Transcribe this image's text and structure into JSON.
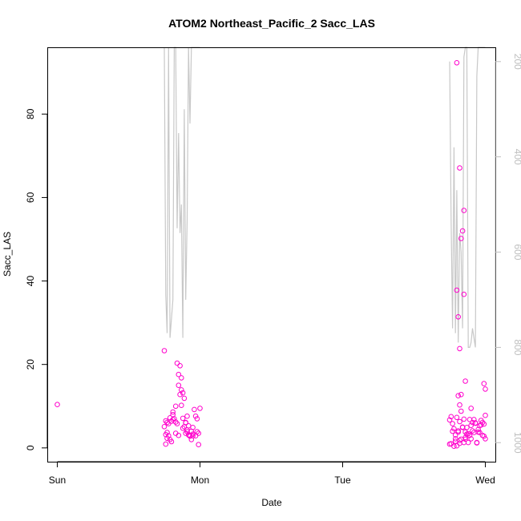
{
  "chart_data": {
    "type": "scatter",
    "title": "ATOM2 Northeast_Pacific_2 Sacc_LAS",
    "xlabel": "Date",
    "ylabel": "Sacc_LAS",
    "x_ticks": [
      "Sun",
      "Mon",
      "Tue",
      "Wed"
    ],
    "x_range_days": [
      -0.07,
      3.07
    ],
    "y_ticks": [
      0,
      20,
      40,
      60,
      80
    ],
    "ylim": [
      -3.3,
      96
    ],
    "y2_ticks": [
      200,
      400,
      600,
      800,
      1000
    ],
    "y2lim": [
      1040,
      170
    ],
    "grid": false,
    "colors": {
      "points": "#ff00cc",
      "pressure_line": "#c8c8c8",
      "right_axis": "#bebebe"
    },
    "series": [
      {
        "kind": "points",
        "x_days": [
          0,
          0.75,
          0.76,
          0.76,
          0.77,
          0.77,
          0.78,
          0.78,
          0.79,
          0.8,
          0.81,
          0.81,
          0.82,
          0.83,
          0.83,
          0.84,
          0.85,
          0.85,
          0.86,
          0.86,
          0.87,
          0.87,
          0.88,
          0.88,
          0.89,
          0.89,
          0.9,
          0.9,
          0.91,
          0.91,
          0.92,
          0.92,
          0.93,
          0.94,
          0.95,
          0.95,
          0.96,
          0.97,
          0.98,
          0.99,
          1.0,
          0.75,
          0.77,
          0.79,
          0.81,
          0.83,
          0.85,
          0.88,
          0.9,
          0.93,
          0.95,
          0.97,
          0.99,
          0.76,
          0.8,
          0.84,
          0.87,
          0.91,
          0.94,
          0.98,
          2.75,
          2.76,
          2.77,
          2.78,
          2.79,
          2.79,
          2.8,
          2.81,
          2.82,
          2.82,
          2.83,
          2.84,
          2.85,
          2.86,
          2.86,
          2.87,
          2.88,
          2.89,
          2.9,
          2.9,
          2.91,
          2.92,
          2.93,
          2.94,
          2.95,
          2.96,
          2.97,
          2.98,
          2.99,
          3.0,
          3.0,
          2.75,
          2.77,
          2.79,
          2.8,
          2.82,
          2.84,
          2.86,
          2.87,
          2.89,
          2.91,
          2.92,
          2.94,
          2.96,
          2.97,
          2.99,
          2.76,
          2.78,
          2.81,
          2.83,
          2.85,
          2.88,
          2.9,
          2.93,
          2.95,
          2.98,
          2.8,
          2.81,
          2.82,
          2.82,
          2.83,
          2.84,
          2.85,
          2.85,
          2.86,
          2.8,
          2.81,
          2.82,
          2.83,
          2.99,
          3.0
        ],
        "y": [
          10.4,
          23.3,
          6.5,
          3.2,
          6.1,
          2.3,
          5.8,
          2.9,
          7.2,
          6.4,
          8.0,
          6.8,
          7.0,
          10.0,
          6.2,
          20.3,
          17.6,
          15.0,
          19.7,
          12.8,
          13.9,
          16.8,
          13.2,
          7.1,
          5.1,
          11.9,
          6.1,
          3.5,
          4.3,
          7.6,
          5.3,
          3.1,
          2.8,
          4.0,
          3.3,
          2.9,
          9.2,
          7.6,
          3.9,
          0.8,
          9.5,
          5.1,
          3.7,
          2.0,
          8.6,
          3.5,
          3.0,
          4.7,
          6.0,
          3.0,
          4.9,
          2.9,
          3.5,
          0.9,
          1.5,
          5.8,
          10.2,
          3.9,
          2.0,
          7.0,
          6.7,
          1.0,
          5.8,
          4.6,
          1.6,
          2.2,
          0.5,
          3.8,
          6.3,
          1.1,
          8.8,
          5.0,
          1.3,
          3.8,
          2.1,
          4.9,
          3.4,
          6.8,
          2.2,
          9.5,
          4.1,
          6.8,
          5.9,
          1.3,
          3.8,
          5.3,
          6.6,
          6.1,
          5.7,
          2.2,
          7.8,
          0.9,
          4.0,
          3.1,
          7.3,
          1.8,
          4.9,
          2.5,
          3.3,
          3.0,
          6.1,
          3.7,
          1.2,
          3.7,
          5.5,
          2.8,
          7.5,
          0.4,
          4.1,
          2.1,
          6.9,
          1.3,
          5.4,
          6.0,
          4.4,
          3.0,
          37.8,
          31.4,
          23.8,
          67.1,
          50.2,
          52.0,
          56.9,
          36.8,
          16.0,
          92.3,
          12.5,
          10.3,
          12.8,
          15.4,
          14.1
        ]
      },
      {
        "kind": "line",
        "name": "",
        "x_days": [
          0.75,
          0.76,
          0.77,
          0.78,
          0.79,
          0.8,
          0.81,
          0.82,
          0.83,
          0.84,
          0.85,
          0.86,
          0.87,
          0.88,
          0.89,
          0.9,
          0.91,
          0.92,
          0.93,
          0.94,
          0.95,
          0.96,
          0.97,
          0.98,
          0.99,
          1.0,
          2.75,
          2.76,
          2.77,
          2.78,
          2.79,
          2.8,
          2.81,
          2.82,
          2.83,
          2.84,
          2.85,
          2.86,
          2.87,
          2.88,
          2.89,
          2.9,
          2.91,
          2.92,
          2.93,
          2.94,
          2.95,
          2.96,
          2.97,
          2.98,
          2.99,
          3.0
        ],
        "pressure_hPa": [
          170,
          690,
          770,
          170,
          780,
          740,
          700,
          170,
          170,
          550,
          350,
          560,
          500,
          780,
          300,
          700,
          530,
          170,
          330,
          170,
          170,
          170,
          170,
          170,
          170,
          170,
          200,
          530,
          760,
          380,
          770,
          470,
          790,
          560,
          600,
          760,
          190,
          170,
          170,
          800,
          800,
          790,
          760,
          780,
          800,
          230,
          170,
          170,
          170,
          170,
          170,
          170
        ]
      }
    ]
  }
}
